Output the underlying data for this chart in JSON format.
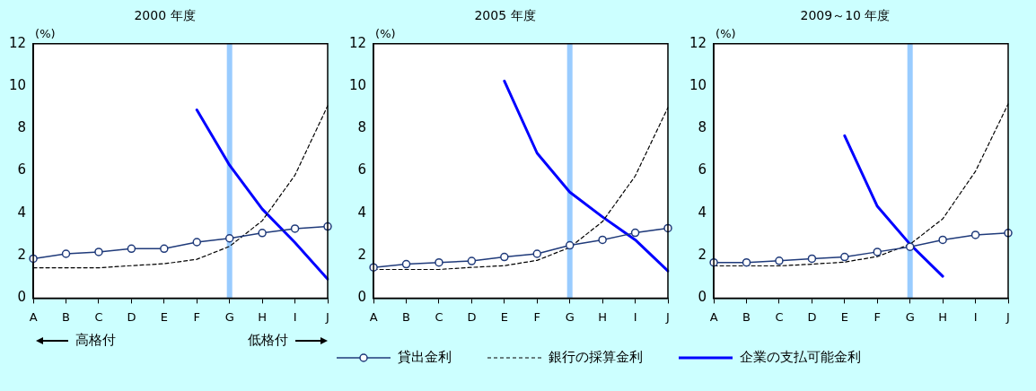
{
  "chart_data": [
    {
      "type": "line",
      "title": "2000 年度",
      "ylabel": "(%)",
      "categories": [
        "A",
        "B",
        "C",
        "D",
        "E",
        "F",
        "G",
        "H",
        "I",
        "J"
      ],
      "ylim": [
        0,
        12
      ],
      "yticks": [
        0,
        2,
        4,
        6,
        8,
        10,
        12
      ],
      "grid": false,
      "legend": "bottom",
      "annotations": [
        "高格付",
        "低格付"
      ],
      "ref_lines": [
        {
          "axis": "x",
          "value": "G",
          "color": "#99ccff"
        }
      ],
      "series": [
        {
          "name": "貸出金利",
          "color": "#1f3a7a",
          "marker": "circle",
          "line_style": "solid",
          "values": [
            1.86,
            2.09,
            2.18,
            2.33,
            2.33,
            2.64,
            2.82,
            3.07,
            3.28,
            3.38
          ]
        },
        {
          "name": "銀行の採算金利",
          "color": "#000000",
          "marker": "none",
          "line_style": "dashed",
          "values": [
            1.43,
            1.43,
            1.43,
            1.53,
            1.62,
            1.83,
            2.44,
            3.65,
            5.8,
            9.07
          ]
        },
        {
          "name": "企業の支払可能金利",
          "color": "#0000ff",
          "marker": "none",
          "line_style": "solid",
          "values": [
            null,
            null,
            null,
            null,
            null,
            8.88,
            6.27,
            4.2,
            2.62,
            0.9
          ]
        }
      ]
    },
    {
      "type": "line",
      "title": "2005 年度",
      "ylabel": "(%)",
      "categories": [
        "A",
        "B",
        "C",
        "D",
        "E",
        "F",
        "G",
        "H",
        "I",
        "J"
      ],
      "ylim": [
        0,
        12
      ],
      "yticks": [
        0,
        2,
        4,
        6,
        8,
        10,
        12
      ],
      "grid": false,
      "ref_lines": [
        {
          "axis": "x",
          "value": "G",
          "color": "#99ccff"
        }
      ],
      "series": [
        {
          "color": "#1f3a7a",
          "marker": "circle",
          "line_style": "solid",
          "values": [
            1.45,
            1.6,
            1.68,
            1.75,
            1.94,
            2.09,
            2.49,
            2.75,
            3.08,
            3.3
          ]
        },
        {
          "color": "#000000",
          "marker": "none",
          "line_style": "dashed",
          "values": [
            1.35,
            1.35,
            1.35,
            1.45,
            1.53,
            1.78,
            2.39,
            3.61,
            5.76,
            8.99
          ]
        },
        {
          "color": "#0000ff",
          "marker": "none",
          "line_style": "solid",
          "values": [
            null,
            null,
            null,
            null,
            10.24,
            6.84,
            5.0,
            3.83,
            2.75,
            1.28
          ]
        }
      ]
    },
    {
      "type": "line",
      "title": "2009～10 年度",
      "ylabel": "(%)",
      "categories": [
        "A",
        "B",
        "C",
        "D",
        "E",
        "F",
        "G",
        "H",
        "I",
        "J"
      ],
      "ylim": [
        0,
        12
      ],
      "yticks": [
        0,
        2,
        4,
        6,
        8,
        10,
        12
      ],
      "grid": false,
      "ref_lines": [
        {
          "axis": "x",
          "value": "G",
          "color": "#99ccff"
        }
      ],
      "series": [
        {
          "color": "#1f3a7a",
          "marker": "circle",
          "line_style": "solid",
          "values": [
            1.68,
            1.68,
            1.76,
            1.86,
            1.94,
            2.18,
            2.42,
            2.75,
            2.98,
            3.07
          ]
        },
        {
          "color": "#000000",
          "marker": "none",
          "line_style": "dashed",
          "values": [
            1.52,
            1.52,
            1.52,
            1.6,
            1.7,
            1.96,
            2.54,
            3.74,
            5.98,
            9.16
          ]
        },
        {
          "color": "#0000ff",
          "marker": "none",
          "line_style": "solid",
          "values": [
            null,
            null,
            null,
            null,
            7.66,
            4.33,
            2.54,
            1.03,
            null,
            null
          ]
        }
      ]
    }
  ]
}
